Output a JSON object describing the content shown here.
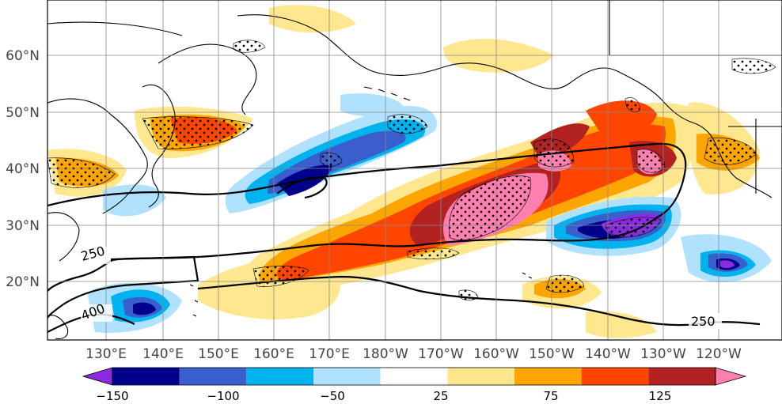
{
  "map": {
    "lat_labels": [
      "60°N",
      "50°N",
      "40°N",
      "30°N",
      "20°N"
    ],
    "lon_labels": [
      "130°E",
      "140°E",
      "150°E",
      "160°E",
      "170°E",
      "180°W",
      "170°W",
      "160°W",
      "150°W",
      "140°W",
      "130°W",
      "120°W"
    ],
    "contour_labels": [
      "250",
      "400",
      "250"
    ]
  },
  "colorbar": {
    "ticks": [
      "−150",
      "−100",
      "−50",
      "25",
      "75",
      "125"
    ],
    "colors": [
      "#8a2be2",
      "#00008b",
      "#3a5fcd",
      "#00b2ee",
      "#b0e2ff",
      "#ffffff",
      "#ffe68a",
      "#ffa500",
      "#ff4500",
      "#b22222",
      "#ff7fb0"
    ]
  }
}
